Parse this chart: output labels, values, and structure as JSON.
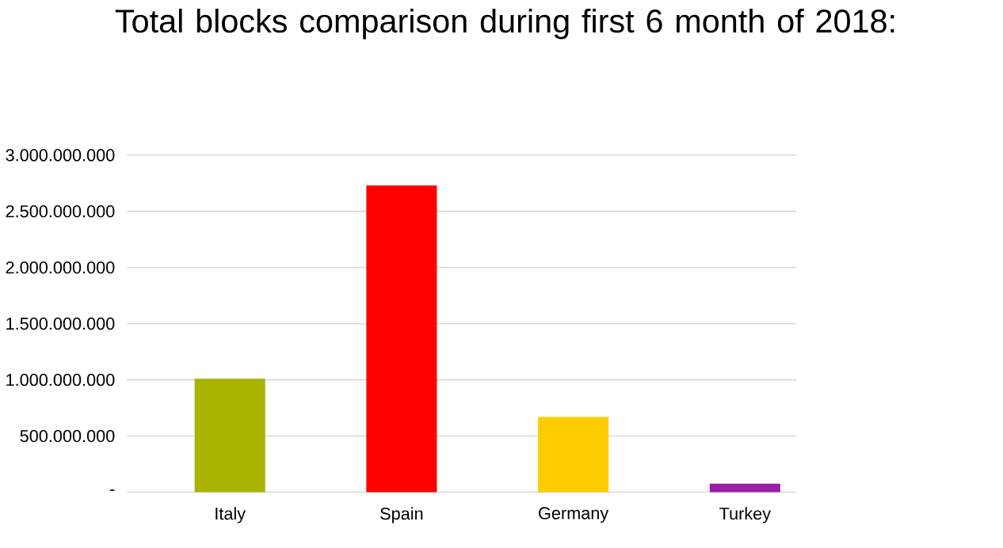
{
  "chart_data": {
    "type": "bar",
    "title": "Total blocks comparison during first 6 month of 2018:",
    "categories": [
      "Italy",
      "Spain",
      "Germany",
      "Turkey"
    ],
    "values": [
      1010000000,
      2730000000,
      670000000,
      75000000
    ],
    "colors": [
      "#a8b400",
      "#ff0000",
      "#ffcc00",
      "#9b1fa6"
    ],
    "ylim": [
      0,
      3000000000
    ],
    "yticks": [
      {
        "value": 0,
        "label": "-"
      },
      {
        "value": 500000000,
        "label": "500.000.000"
      },
      {
        "value": 1000000000,
        "label": "1.000.000.000"
      },
      {
        "value": 1500000000,
        "label": "1.500.000.000"
      },
      {
        "value": 2000000000,
        "label": "2.000.000.000"
      },
      {
        "value": 2500000000,
        "label": "2.500.000.000"
      },
      {
        "value": 3000000000,
        "label": "3.000.000.000"
      }
    ],
    "grid": "y"
  }
}
